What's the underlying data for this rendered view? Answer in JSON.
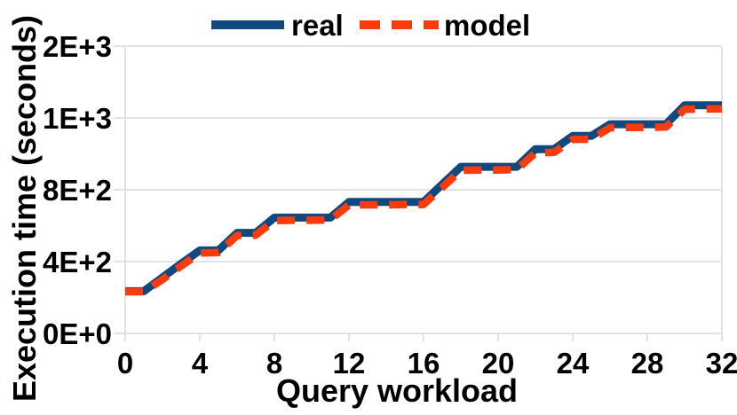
{
  "figure": {
    "background": "#ffffff",
    "grid_color": "#e2e2e2",
    "text_color": "#000000"
  },
  "chart_data": {
    "type": "line",
    "title": "",
    "xlabel": "Query workload",
    "ylabel": "Execution time (seconds)",
    "xlim": [
      0,
      32
    ],
    "ylim": [
      0,
      1600
    ],
    "grid": true,
    "legend_position": "top-center",
    "x": [
      0,
      1,
      2,
      3,
      4,
      5,
      6,
      7,
      8,
      9,
      10,
      11,
      12,
      13,
      14,
      15,
      16,
      17,
      18,
      19,
      20,
      21,
      22,
      23,
      24,
      25,
      26,
      27,
      28,
      29,
      30,
      31,
      32
    ],
    "series": [
      {
        "name": "real",
        "color": "#11497e",
        "style": "solid",
        "values": [
          235,
          235,
          312,
          388,
          462,
          462,
          560,
          560,
          645,
          645,
          645,
          645,
          732,
          732,
          732,
          732,
          732,
          830,
          928,
          928,
          928,
          928,
          1026,
          1026,
          1100,
          1100,
          1165,
          1165,
          1165,
          1165,
          1270,
          1270,
          1270
        ]
      },
      {
        "name": "model",
        "color": "#fa3c0d",
        "style": "dashed",
        "values": [
          232,
          232,
          300,
          375,
          448,
          450,
          545,
          547,
          628,
          630,
          630,
          632,
          715,
          716,
          716,
          718,
          718,
          812,
          908,
          910,
          910,
          912,
          1006,
          1008,
          1080,
          1082,
          1145,
          1147,
          1147,
          1149,
          1248,
          1250,
          1250
        ]
      }
    ],
    "xticks": {
      "values": [
        0,
        4,
        8,
        12,
        16,
        20,
        24,
        28,
        32
      ],
      "labels": [
        "0",
        "4",
        "8",
        "12",
        "16",
        "20",
        "24",
        "28",
        "32"
      ]
    },
    "yticks": {
      "values": [
        0,
        400,
        800,
        1200,
        1600
      ],
      "labels": [
        "0E+0",
        "4E+2",
        "8E+2",
        "1E+3",
        "2E+3"
      ]
    }
  }
}
